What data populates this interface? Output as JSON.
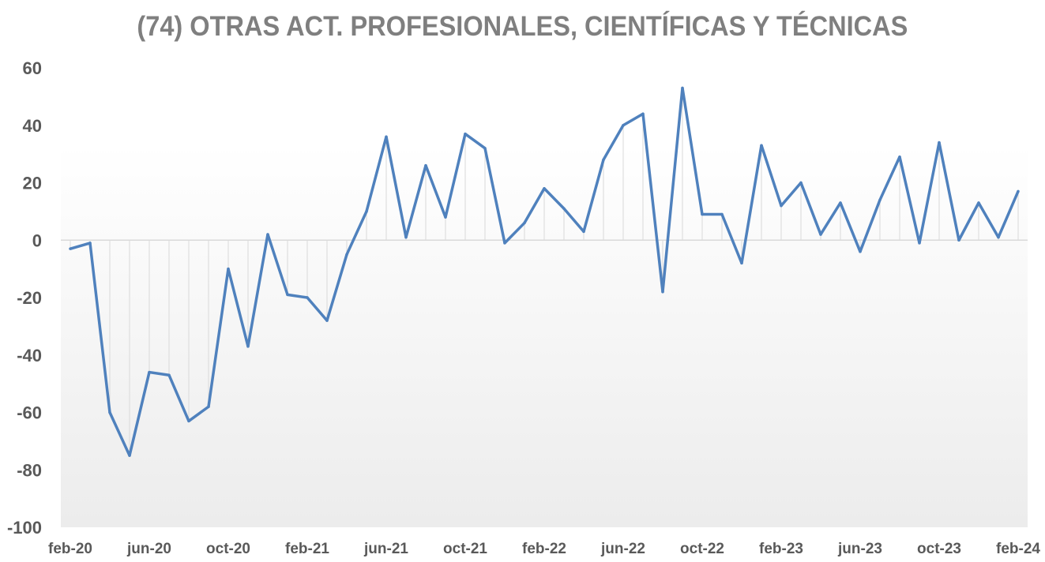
{
  "chart_data": {
    "type": "line",
    "title": "(74) OTRAS ACT. PROFESIONALES, CIENTÍFICAS Y TÉCNICAS",
    "xlabel": "",
    "ylabel": "",
    "ylim": [
      -100,
      60
    ],
    "yticks": [
      "60",
      "40",
      "20",
      "0",
      "-20",
      "-40",
      "-60",
      "-80",
      "-100"
    ],
    "ytick_values": [
      60,
      40,
      20,
      0,
      -20,
      -40,
      -60,
      -80,
      -100
    ],
    "x": [
      "feb-20",
      "mar-20",
      "abr-20",
      "may-20",
      "jun-20",
      "jul-20",
      "ago-20",
      "sep-20",
      "oct-20",
      "nov-20",
      "dic-20",
      "ene-21",
      "feb-21",
      "mar-21",
      "abr-21",
      "may-21",
      "jun-21",
      "jul-21",
      "ago-21",
      "sep-21",
      "oct-21",
      "nov-21",
      "dic-21",
      "ene-22",
      "feb-22",
      "mar-22",
      "abr-22",
      "may-22",
      "jun-22",
      "jul-22",
      "ago-22",
      "sep-22",
      "oct-22",
      "nov-22",
      "dic-22",
      "ene-23",
      "feb-23",
      "mar-23",
      "abr-23",
      "may-23",
      "jun-23",
      "jul-23",
      "ago-23",
      "sep-23",
      "oct-23",
      "nov-23",
      "dic-23",
      "ene-24",
      "feb-24"
    ],
    "xtick_labels": [
      "feb-20",
      "jun-20",
      "oct-20",
      "feb-21",
      "jun-21",
      "oct-21",
      "feb-22",
      "jun-22",
      "oct-22",
      "feb-23",
      "jun-23",
      "oct-23",
      "feb-24"
    ],
    "series": [
      {
        "color": "#4f81bd",
        "values": [
          -3,
          -1,
          -60,
          -75,
          -46,
          -47,
          -63,
          -58,
          -10,
          -37,
          2,
          -19,
          -20,
          -28,
          -5,
          10,
          36,
          1,
          26,
          8,
          37,
          32,
          -1,
          6,
          18,
          11,
          3,
          28,
          40,
          44,
          -18,
          53,
          9,
          9,
          -8,
          33,
          12,
          20,
          2,
          13,
          -4,
          14,
          29,
          -1,
          34,
          0,
          13,
          1,
          17
        ]
      }
    ],
    "grid": false,
    "drop_lines": true,
    "colors": {
      "line": "#4f81bd",
      "title": "#7f7f7f",
      "tick": "#595959",
      "drop_line": "#d9d9d9",
      "zero_line": "#d9d9d9"
    }
  }
}
